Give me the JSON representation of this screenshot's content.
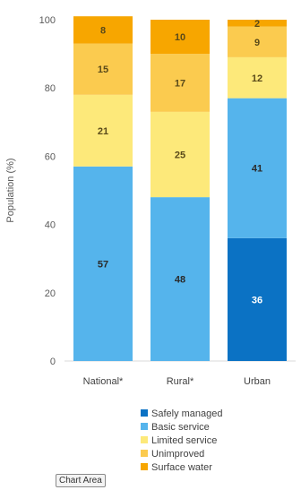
{
  "chart_data": {
    "type": "bar",
    "stacked": true,
    "categories": [
      "National*",
      "Rural*",
      "Urban"
    ],
    "ylabel": "Population (%)",
    "ylim": [
      0,
      100
    ],
    "yticks": [
      0,
      20,
      40,
      60,
      80,
      100
    ],
    "grid": false,
    "legend_position": "bottom-right",
    "series": [
      {
        "name": "Safely managed",
        "color": "#0b72c4",
        "values": [
          0,
          0,
          36
        ],
        "labels": [
          "0",
          "0",
          "36"
        ]
      },
      {
        "name": "Basic service",
        "color": "#55b4ec",
        "values": [
          57,
          48,
          41
        ],
        "labels": [
          "57",
          "48",
          "41"
        ]
      },
      {
        "name": "Limited service",
        "color": "#fde97a",
        "values": [
          21,
          25,
          12
        ],
        "labels": [
          "21",
          "25",
          "12"
        ]
      },
      {
        "name": "Unimproved",
        "color": "#fbcb4f",
        "values": [
          15,
          17,
          9
        ],
        "labels": [
          "15",
          "17",
          "9"
        ]
      },
      {
        "name": "Surface water",
        "color": "#f7a600",
        "values": [
          8,
          10,
          2
        ],
        "labels": [
          "8",
          "10",
          "2"
        ]
      }
    ]
  },
  "ui": {
    "chart_area_label": "Chart Area"
  }
}
